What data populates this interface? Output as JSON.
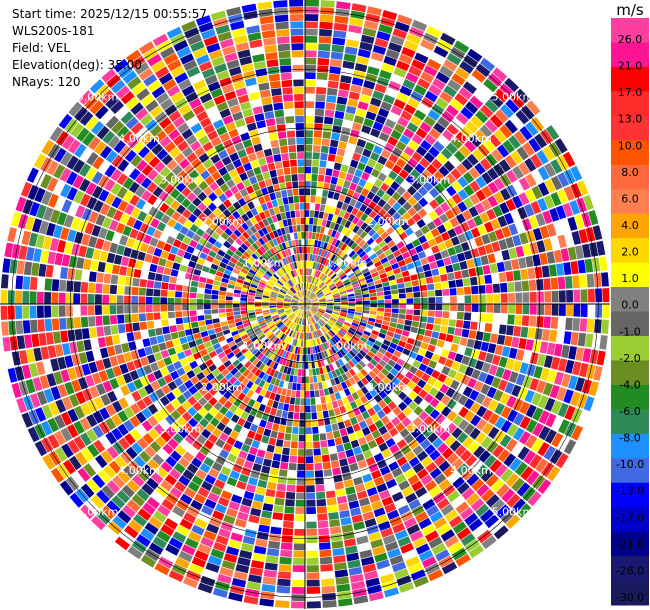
{
  "header": {
    "start_time": "Start time: 2025/12/15 00:55:57",
    "instrument": "WLS200s-181",
    "field": "Field: VEL",
    "elevation": "Elevation(deg): 35.00",
    "nrays": "NRays: 120"
  },
  "chart_data": {
    "type": "heatmap",
    "projection": "polar (PPI)",
    "nrays": 120,
    "range_rings": [
      "1.00km",
      "2.00km",
      "3.00km",
      "4.00km",
      "5.00km"
    ],
    "range_ring_values_km": [
      1,
      2,
      3,
      4,
      5
    ],
    "max_range_km": 5.2,
    "colorbar": {
      "unit": "m/s",
      "tick_labels": [
        "26.0",
        "21.0",
        "17.0",
        "13.0",
        "10.0",
        "8.0",
        "6.0",
        "4.0",
        "2.0",
        "1.0",
        "0.0",
        "-1.0",
        "-2.0",
        "-4.0",
        "-6.0",
        "-8.0",
        "-10.0",
        "-13.0",
        "-17.0",
        "-21.0",
        "-26.0",
        "-30.0"
      ],
      "colors": [
        "#ff3fa0",
        "#ff1493",
        "#ff0000",
        "#ff2a2a",
        "#ff3333",
        "#ff5500",
        "#ff6a3c",
        "#ff7f50",
        "#ffa500",
        "#ffd700",
        "#ffff00",
        "#808080",
        "#666666",
        "#9acd32",
        "#6b8e23",
        "#228b22",
        "#2e8b57",
        "#1e90ff",
        "#4169e1",
        "#0000ff",
        "#0000cd",
        "#00008b",
        "#191970",
        "#1a1a5e"
      ]
    }
  }
}
